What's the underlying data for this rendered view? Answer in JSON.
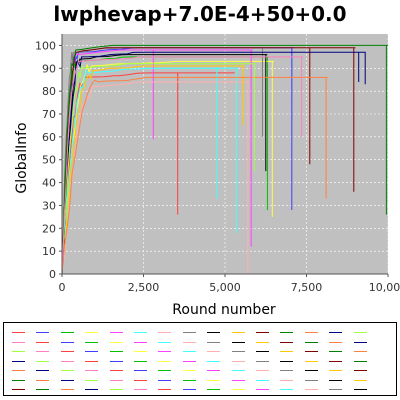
{
  "chart_data": {
    "type": "line",
    "title": "lwphevap+7.0E-4+50+0.0",
    "xlabel": "Round number",
    "ylabel": "GlobalInfo",
    "xlim": [
      0,
      10000
    ],
    "ylim": [
      0,
      105
    ],
    "x_ticks": [
      0,
      2500,
      5000,
      7500,
      10000
    ],
    "x_tick_labels": [
      "0",
      "2,500",
      "5,000",
      "7,500",
      "10,000"
    ],
    "y_ticks": [
      0,
      10,
      20,
      30,
      40,
      50,
      60,
      70,
      80,
      90,
      100
    ],
    "y_tick_labels": [
      "0",
      "10",
      "20",
      "30",
      "40",
      "50",
      "60",
      "70",
      "80",
      "90",
      "100"
    ],
    "grid": true,
    "background": "#c0c0c0",
    "series": [
      {
        "name": "run-1",
        "color": "#ff4040",
        "plateau": 88,
        "rise": 700,
        "drops": [
          {
            "x": 3550,
            "y": 26
          }
        ],
        "end": 5300
      },
      {
        "name": "run-2",
        "color": "#4040ff",
        "plateau": 99,
        "rise": 500,
        "drops": [
          {
            "x": 7050,
            "y": 28
          }
        ],
        "end": 7100
      },
      {
        "name": "run-3",
        "color": "#00c000",
        "plateau": 95,
        "rise": 450,
        "drops": [
          {
            "x": 6300,
            "y": 28
          }
        ],
        "end": 6350
      },
      {
        "name": "run-4",
        "color": "#ffff40",
        "plateau": 93,
        "rise": 900,
        "drops": [
          {
            "x": 6450,
            "y": 25
          }
        ],
        "end": 6500
      },
      {
        "name": "run-5",
        "color": "#ff40ff",
        "plateau": 98,
        "rise": 400,
        "drops": [
          {
            "x": 2800,
            "y": 59
          },
          {
            "x": 5800,
            "y": 12
          }
        ],
        "end": 5850
      },
      {
        "name": "run-6",
        "color": "#40ffff",
        "plateau": 90,
        "rise": 800,
        "drops": [
          {
            "x": 5350,
            "y": 18
          },
          {
            "x": 4750,
            "y": 33
          }
        ],
        "end": 5400
      },
      {
        "name": "run-7",
        "color": "#ffb0b0",
        "plateau": 84,
        "rise": 1000,
        "drops": [
          {
            "x": 5700,
            "y": 0
          }
        ],
        "end": 5750
      },
      {
        "name": "run-8",
        "color": "#808080",
        "plateau": 99,
        "rise": 350,
        "drops": [
          {
            "x": 6150,
            "y": 60
          }
        ],
        "end": 6200
      },
      {
        "name": "run-9",
        "color": "#000000",
        "plateau": 96,
        "rise": 550,
        "drops": [
          {
            "x": 6250,
            "y": 45
          }
        ],
        "end": 6300
      },
      {
        "name": "run-10",
        "color": "#ffc800",
        "plateau": 91,
        "rise": 950,
        "drops": [
          {
            "x": 5550,
            "y": 65
          }
        ],
        "end": 5600
      },
      {
        "name": "run-11",
        "color": "#800000",
        "plateau": 99,
        "rise": 450,
        "drops": [
          {
            "x": 7600,
            "y": 48
          },
          {
            "x": 8950,
            "y": 36
          }
        ],
        "end": 9000
      },
      {
        "name": "run-12",
        "color": "#008000",
        "plateau": 100,
        "rise": 420,
        "drops": [
          {
            "x": 9950,
            "y": 26
          }
        ],
        "end": 10000
      },
      {
        "name": "run-13",
        "color": "#ff8040",
        "plateau": 86,
        "rise": 1100,
        "drops": [
          {
            "x": 8100,
            "y": 33
          }
        ],
        "end": 8150
      },
      {
        "name": "run-14",
        "color": "#000080",
        "plateau": 97,
        "rise": 600,
        "drops": [
          {
            "x": 9100,
            "y": 84
          },
          {
            "x": 9300,
            "y": 83
          }
        ],
        "end": 9300
      },
      {
        "name": "run-15",
        "color": "#a0ff40",
        "plateau": 92,
        "rise": 650,
        "drops": [
          {
            "x": 5900,
            "y": 45
          }
        ],
        "end": 5950
      },
      {
        "name": "run-16",
        "color": "#ff80c0",
        "plateau": 95,
        "rise": 500,
        "drops": [
          {
            "x": 7350,
            "y": 60
          }
        ],
        "end": 7400
      }
    ],
    "legend_rows": 7,
    "legend_cols": 15
  }
}
